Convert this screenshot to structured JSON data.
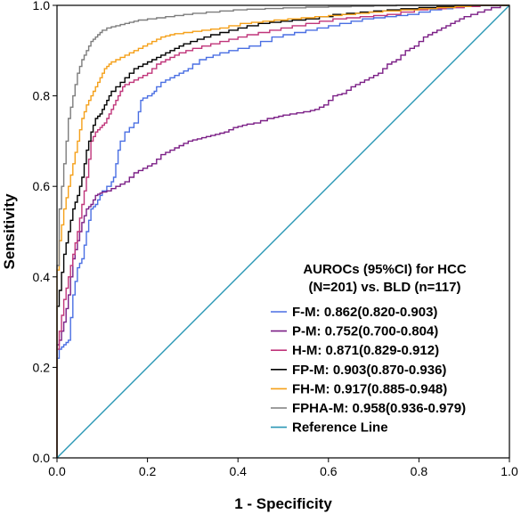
{
  "chart_data": {
    "type": "line",
    "xlabel": "1 - Specificity",
    "ylabel": "Sensitivity",
    "xlim": [
      0,
      1
    ],
    "ylim": [
      0,
      1
    ],
    "x_ticks": [
      "0.0",
      "0.2",
      "0.4",
      "0.6",
      "0.8",
      "1.0"
    ],
    "y_ticks": [
      "0.0",
      "0.2",
      "0.4",
      "0.6",
      "0.8",
      "1.0"
    ],
    "legend": {
      "title_line1": "AUROCs (95%CI) for HCC",
      "title_line2": "(N=201) vs. BLD (n=117)",
      "placement": "bottom-right"
    },
    "series": [
      {
        "name": "F-M: 0.862(0.820-0.903)",
        "color": "#4a6fe3",
        "points": [
          [
            0,
            0
          ],
          [
            0,
            0.2
          ],
          [
            0.01,
            0.24
          ],
          [
            0.02,
            0.25
          ],
          [
            0.03,
            0.26
          ],
          [
            0.04,
            0.36
          ],
          [
            0.05,
            0.42
          ],
          [
            0.06,
            0.44
          ],
          [
            0.07,
            0.5
          ],
          [
            0.08,
            0.55
          ],
          [
            0.09,
            0.56
          ],
          [
            0.1,
            0.58
          ],
          [
            0.12,
            0.6
          ],
          [
            0.13,
            0.62
          ],
          [
            0.14,
            0.68
          ],
          [
            0.16,
            0.72
          ],
          [
            0.18,
            0.74
          ],
          [
            0.19,
            0.79
          ],
          [
            0.21,
            0.8
          ],
          [
            0.22,
            0.81
          ],
          [
            0.24,
            0.83
          ],
          [
            0.26,
            0.84
          ],
          [
            0.28,
            0.85
          ],
          [
            0.3,
            0.86
          ],
          [
            0.33,
            0.88
          ],
          [
            0.36,
            0.89
          ],
          [
            0.4,
            0.9
          ],
          [
            0.45,
            0.91
          ],
          [
            0.5,
            0.93
          ],
          [
            0.55,
            0.94
          ],
          [
            0.6,
            0.95
          ],
          [
            0.65,
            0.96
          ],
          [
            0.7,
            0.97
          ],
          [
            0.75,
            0.975
          ],
          [
            0.8,
            0.98
          ],
          [
            0.85,
            0.99
          ],
          [
            0.9,
            0.995
          ],
          [
            0.95,
            1
          ],
          [
            1,
            1
          ]
        ]
      },
      {
        "name": "P-M: 0.752(0.700-0.804)",
        "color": "#7b1f86",
        "points": [
          [
            0,
            0
          ],
          [
            0,
            0.24
          ],
          [
            0.01,
            0.26
          ],
          [
            0.02,
            0.3
          ],
          [
            0.03,
            0.36
          ],
          [
            0.04,
            0.44
          ],
          [
            0.05,
            0.48
          ],
          [
            0.06,
            0.52
          ],
          [
            0.07,
            0.55
          ],
          [
            0.08,
            0.56
          ],
          [
            0.09,
            0.58
          ],
          [
            0.1,
            0.585
          ],
          [
            0.12,
            0.59
          ],
          [
            0.14,
            0.6
          ],
          [
            0.16,
            0.61
          ],
          [
            0.18,
            0.63
          ],
          [
            0.2,
            0.64
          ],
          [
            0.22,
            0.65
          ],
          [
            0.24,
            0.67
          ],
          [
            0.26,
            0.68
          ],
          [
            0.28,
            0.69
          ],
          [
            0.3,
            0.7
          ],
          [
            0.32,
            0.705
          ],
          [
            0.34,
            0.71
          ],
          [
            0.36,
            0.715
          ],
          [
            0.38,
            0.72
          ],
          [
            0.4,
            0.73
          ],
          [
            0.42,
            0.735
          ],
          [
            0.45,
            0.74
          ],
          [
            0.48,
            0.75
          ],
          [
            0.5,
            0.755
          ],
          [
            0.53,
            0.76
          ],
          [
            0.56,
            0.765
          ],
          [
            0.58,
            0.77
          ],
          [
            0.6,
            0.78
          ],
          [
            0.62,
            0.8
          ],
          [
            0.64,
            0.805
          ],
          [
            0.66,
            0.82
          ],
          [
            0.68,
            0.83
          ],
          [
            0.7,
            0.84
          ],
          [
            0.72,
            0.85
          ],
          [
            0.74,
            0.87
          ],
          [
            0.76,
            0.88
          ],
          [
            0.78,
            0.9
          ],
          [
            0.8,
            0.91
          ],
          [
            0.82,
            0.93
          ],
          [
            0.84,
            0.94
          ],
          [
            0.86,
            0.95
          ],
          [
            0.88,
            0.96
          ],
          [
            0.9,
            0.97
          ],
          [
            0.93,
            0.98
          ],
          [
            0.96,
            0.99
          ],
          [
            1,
            1
          ]
        ]
      },
      {
        "name": "H-M: 0.871(0.829-0.912)",
        "color": "#c0357a",
        "points": [
          [
            0,
            0
          ],
          [
            0,
            0.2
          ],
          [
            0.01,
            0.28
          ],
          [
            0.02,
            0.35
          ],
          [
            0.03,
            0.4
          ],
          [
            0.04,
            0.45
          ],
          [
            0.05,
            0.5
          ],
          [
            0.06,
            0.56
          ],
          [
            0.07,
            0.62
          ],
          [
            0.08,
            0.7
          ],
          [
            0.09,
            0.72
          ],
          [
            0.1,
            0.73
          ],
          [
            0.11,
            0.74
          ],
          [
            0.12,
            0.76
          ],
          [
            0.13,
            0.78
          ],
          [
            0.14,
            0.8
          ],
          [
            0.15,
            0.82
          ],
          [
            0.17,
            0.83
          ],
          [
            0.19,
            0.84
          ],
          [
            0.21,
            0.85
          ],
          [
            0.23,
            0.87
          ],
          [
            0.25,
            0.88
          ],
          [
            0.27,
            0.89
          ],
          [
            0.3,
            0.9
          ],
          [
            0.34,
            0.91
          ],
          [
            0.38,
            0.92
          ],
          [
            0.42,
            0.93
          ],
          [
            0.47,
            0.94
          ],
          [
            0.52,
            0.95
          ],
          [
            0.58,
            0.96
          ],
          [
            0.64,
            0.97
          ],
          [
            0.7,
            0.975
          ],
          [
            0.76,
            0.98
          ],
          [
            0.82,
            0.99
          ],
          [
            0.9,
            0.995
          ],
          [
            0.97,
            1
          ],
          [
            1,
            1
          ]
        ]
      },
      {
        "name": "FP-M: 0.903(0.870-0.936)",
        "color": "#000000",
        "points": [
          [
            0,
            0
          ],
          [
            0,
            0.3
          ],
          [
            0.01,
            0.37
          ],
          [
            0.02,
            0.45
          ],
          [
            0.03,
            0.5
          ],
          [
            0.04,
            0.55
          ],
          [
            0.05,
            0.58
          ],
          [
            0.06,
            0.62
          ],
          [
            0.07,
            0.68
          ],
          [
            0.08,
            0.72
          ],
          [
            0.09,
            0.75
          ],
          [
            0.1,
            0.76
          ],
          [
            0.11,
            0.78
          ],
          [
            0.12,
            0.8
          ],
          [
            0.14,
            0.82
          ],
          [
            0.16,
            0.84
          ],
          [
            0.18,
            0.86
          ],
          [
            0.2,
            0.87
          ],
          [
            0.22,
            0.88
          ],
          [
            0.24,
            0.89
          ],
          [
            0.26,
            0.9
          ],
          [
            0.28,
            0.91
          ],
          [
            0.31,
            0.92
          ],
          [
            0.34,
            0.93
          ],
          [
            0.38,
            0.94
          ],
          [
            0.42,
            0.95
          ],
          [
            0.47,
            0.96
          ],
          [
            0.52,
            0.965
          ],
          [
            0.58,
            0.97
          ],
          [
            0.64,
            0.98
          ],
          [
            0.7,
            0.985
          ],
          [
            0.76,
            0.99
          ],
          [
            0.84,
            0.995
          ],
          [
            0.92,
            1
          ],
          [
            1,
            1
          ]
        ]
      },
      {
        "name": "FH-M: 0.917(0.885-0.948)",
        "color": "#f5a019",
        "points": [
          [
            0,
            0
          ],
          [
            0,
            0.35
          ],
          [
            0.01,
            0.48
          ],
          [
            0.02,
            0.55
          ],
          [
            0.03,
            0.6
          ],
          [
            0.04,
            0.65
          ],
          [
            0.05,
            0.7
          ],
          [
            0.06,
            0.75
          ],
          [
            0.07,
            0.78
          ],
          [
            0.08,
            0.8
          ],
          [
            0.09,
            0.82
          ],
          [
            0.1,
            0.84
          ],
          [
            0.11,
            0.86
          ],
          [
            0.12,
            0.87
          ],
          [
            0.14,
            0.88
          ],
          [
            0.16,
            0.89
          ],
          [
            0.18,
            0.9
          ],
          [
            0.2,
            0.91
          ],
          [
            0.22,
            0.92
          ],
          [
            0.24,
            0.93
          ],
          [
            0.26,
            0.935
          ],
          [
            0.3,
            0.94
          ],
          [
            0.34,
            0.945
          ],
          [
            0.38,
            0.95
          ],
          [
            0.43,
            0.96
          ],
          [
            0.48,
            0.965
          ],
          [
            0.54,
            0.97
          ],
          [
            0.6,
            0.975
          ],
          [
            0.66,
            0.98
          ],
          [
            0.72,
            0.985
          ],
          [
            0.8,
            0.99
          ],
          [
            0.88,
            0.995
          ],
          [
            0.95,
            1
          ],
          [
            1,
            1
          ]
        ]
      },
      {
        "name": "FPHA-M: 0.958(0.936-0.979)",
        "color": "#7d7d7d",
        "points": [
          [
            0,
            0
          ],
          [
            0,
            0.3
          ],
          [
            0.01,
            0.55
          ],
          [
            0.02,
            0.65
          ],
          [
            0.03,
            0.75
          ],
          [
            0.04,
            0.8
          ],
          [
            0.05,
            0.85
          ],
          [
            0.06,
            0.88
          ],
          [
            0.07,
            0.9
          ],
          [
            0.08,
            0.92
          ],
          [
            0.09,
            0.93
          ],
          [
            0.1,
            0.94
          ],
          [
            0.12,
            0.95
          ],
          [
            0.14,
            0.955
          ],
          [
            0.16,
            0.96
          ],
          [
            0.18,
            0.965
          ],
          [
            0.22,
            0.97
          ],
          [
            0.26,
            0.975
          ],
          [
            0.3,
            0.98
          ],
          [
            0.36,
            0.985
          ],
          [
            0.42,
            0.99
          ],
          [
            0.5,
            0.993
          ],
          [
            0.6,
            0.996
          ],
          [
            0.7,
            0.998
          ],
          [
            0.8,
            1
          ],
          [
            1,
            1
          ]
        ]
      },
      {
        "name": "Reference Line",
        "color": "#2a97b5",
        "points": [
          [
            0,
            0
          ],
          [
            1,
            1
          ]
        ]
      }
    ]
  }
}
